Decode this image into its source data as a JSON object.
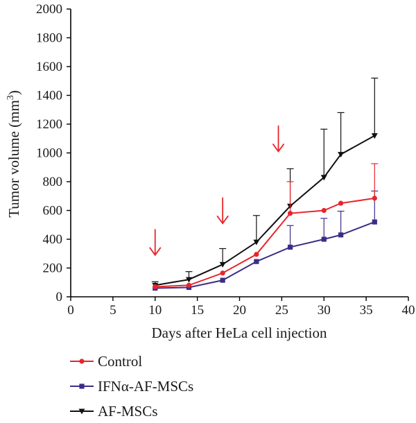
{
  "chart_data": {
    "type": "line",
    "xlabel": "Days after HeLa cell injection",
    "ylabel": "Tumor volume (mm",
    "ylabel_sup": "3",
    "ylabel_close": ")",
    "xlim": [
      0,
      40
    ],
    "ylim": [
      0,
      2000
    ],
    "xticks": [
      0,
      5,
      10,
      15,
      20,
      25,
      30,
      35,
      40
    ],
    "yticks": [
      0,
      200,
      400,
      600,
      800,
      1000,
      1200,
      1400,
      1600,
      1800,
      2000
    ],
    "grid": false,
    "legend_position": "bottom-left, below plot",
    "series": [
      {
        "name": "Control",
        "color": "#e8252a",
        "marker": "circle",
        "x": [
          10,
          14,
          18,
          22,
          26,
          30,
          32,
          36
        ],
        "y": [
          70,
          80,
          165,
          295,
          580,
          600,
          650,
          685
        ],
        "error": [
          0,
          0,
          0,
          0,
          220,
          0,
          0,
          240
        ]
      },
      {
        "name": "IFNα-AF-MSCs",
        "color": "#3d2c86",
        "marker": "square",
        "x": [
          10,
          14,
          18,
          22,
          26,
          30,
          32,
          36
        ],
        "y": [
          60,
          65,
          115,
          245,
          345,
          400,
          430,
          520
        ],
        "error": [
          0,
          0,
          0,
          0,
          150,
          145,
          165,
          215
        ]
      },
      {
        "name": "AF-MSCs",
        "color": "#111111",
        "marker": "triangle-down",
        "x": [
          10,
          14,
          18,
          22,
          26,
          30,
          32,
          36
        ],
        "y": [
          80,
          120,
          225,
          380,
          630,
          830,
          990,
          1120
        ],
        "error": [
          25,
          55,
          110,
          185,
          260,
          335,
          290,
          400
        ]
      }
    ],
    "annotations": [
      {
        "type": "down-arrow",
        "color": "#e8252a",
        "x": 10,
        "y_top": 470,
        "y_bottom": 290
      },
      {
        "type": "down-arrow",
        "color": "#e8252a",
        "x": 18,
        "y_top": 690,
        "y_bottom": 510
      },
      {
        "type": "down-arrow",
        "color": "#e8252a",
        "x": 24.6,
        "y_top": 1190,
        "y_bottom": 1010
      }
    ]
  }
}
